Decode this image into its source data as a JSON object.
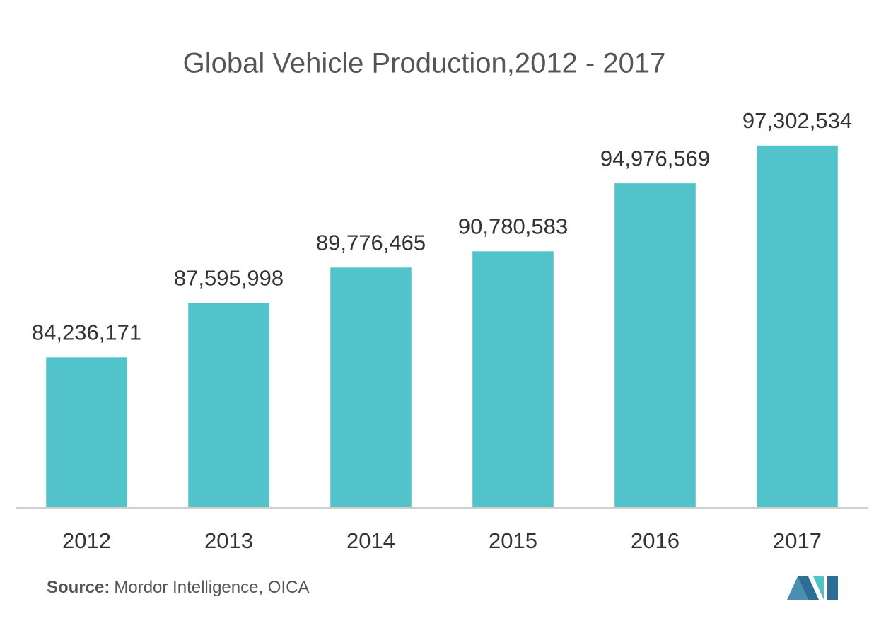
{
  "chart_data": {
    "type": "bar",
    "title": "Global Vehicle Production,2012 - 2017",
    "categories": [
      "2012",
      "2013",
      "2014",
      "2015",
      "2016",
      "2017"
    ],
    "values": [
      84236171,
      87595998,
      89776465,
      90780583,
      94976569,
      97302534
    ],
    "value_labels": [
      "84,236,171",
      "87,595,998",
      "89,776,465",
      "90,780,583",
      "94,976,569",
      "97,302,534"
    ],
    "color": "#52c3ca",
    "ylim": [
      75000000,
      100000000
    ],
    "source_label": "Source:",
    "source": "Mordor Intelligence, OICA"
  }
}
